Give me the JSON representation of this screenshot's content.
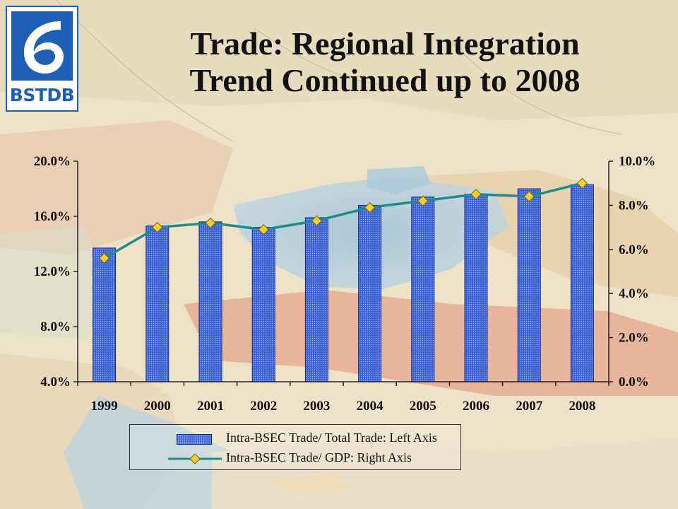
{
  "logo": {
    "text": "BSTDB"
  },
  "title": {
    "line1": "Trade: Regional Integration",
    "line2": "Trend Continued up to 2008"
  },
  "colors": {
    "bar_fill": "#3b5fd6",
    "line_stroke": "#1e8c8c",
    "marker_fill": "#f2cf2f",
    "logo_blue": "#1f5fb5"
  },
  "chart_data": {
    "type": "bar",
    "categories": [
      "1999",
      "2000",
      "2001",
      "2002",
      "2003",
      "2004",
      "2005",
      "2006",
      "2007",
      "2008"
    ],
    "series": [
      {
        "name": "Intra-BSEC Trade/ Total Trade: Left Axis",
        "type": "bar",
        "axis": "left",
        "values": [
          13.7,
          15.3,
          15.6,
          15.2,
          15.9,
          16.8,
          17.4,
          17.6,
          18.0,
          18.3
        ]
      },
      {
        "name": "Intra-BSEC Trade/ GDP: Right Axis",
        "type": "line",
        "axis": "right",
        "values": [
          5.6,
          7.0,
          7.2,
          6.9,
          7.3,
          7.9,
          8.2,
          8.5,
          8.4,
          9.0
        ]
      }
    ],
    "y_left": {
      "lim": [
        4.0,
        20.0
      ],
      "ticks": [
        4.0,
        8.0,
        12.0,
        16.0,
        20.0
      ],
      "tick_labels": [
        "4.0%",
        "8.0%",
        "12.0%",
        "16.0%",
        "20.0%"
      ]
    },
    "y_right": {
      "lim": [
        0.0,
        10.0
      ],
      "ticks": [
        0.0,
        2.0,
        4.0,
        6.0,
        8.0,
        10.0
      ],
      "tick_labels": [
        "0.0%",
        "2.0%",
        "4.0%",
        "6.0%",
        "8.0%",
        "10.0%"
      ]
    },
    "grid": false,
    "legend_position": "bottom"
  },
  "legend": {
    "bar_label": "Intra-BSEC Trade/ Total Trade: Left Axis",
    "line_label": "Intra-BSEC Trade/ GDP: Right Axis"
  }
}
